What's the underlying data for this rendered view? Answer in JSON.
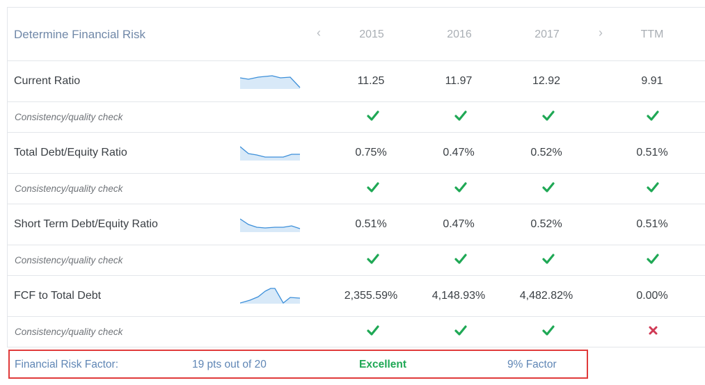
{
  "header": {
    "title": "Determine Financial Risk",
    "prev_icon": "chevron-left-icon",
    "next_icon": "chevron-right-icon",
    "years": [
      "2015",
      "2016",
      "2017"
    ],
    "ttm": "TTM"
  },
  "rows": [
    {
      "label": "Current Ratio",
      "values": [
        "11.25",
        "11.97",
        "12.92"
      ],
      "ttm": "9.91",
      "check": [
        "pass",
        "pass",
        "pass"
      ],
      "check_ttm": "pass"
    },
    {
      "label": "Total Debt/Equity Ratio",
      "values": [
        "0.75%",
        "0.47%",
        "0.52%"
      ],
      "ttm": "0.51%",
      "check": [
        "pass",
        "pass",
        "pass"
      ],
      "check_ttm": "pass"
    },
    {
      "label": "Short Term Debt/Equity Ratio",
      "values": [
        "0.51%",
        "0.47%",
        "0.52%"
      ],
      "ttm": "0.51%",
      "check": [
        "pass",
        "pass",
        "pass"
      ],
      "check_ttm": "pass"
    },
    {
      "label": "FCF to Total Debt",
      "values": [
        "2,355.59%",
        "4,148.93%",
        "4,482.82%"
      ],
      "ttm": "0.00%",
      "check": [
        "pass",
        "pass",
        "pass"
      ],
      "check_ttm": "fail"
    }
  ],
  "check_label": "Consistency/quality check",
  "footer": {
    "label": "Financial Risk Factor:",
    "points": "19 pts out of 20",
    "rating": "Excellent",
    "factor": "9% Factor"
  },
  "colors": {
    "title": "#7088a8",
    "check": "#1fa855",
    "cross": "#d03a55",
    "footer_text": "#5f86b5",
    "rating": "#1fa855",
    "highlight_border": "#e03a3a",
    "sparkline_stroke": "#3c8fd9",
    "sparkline_fill": "#d8e9f8"
  }
}
